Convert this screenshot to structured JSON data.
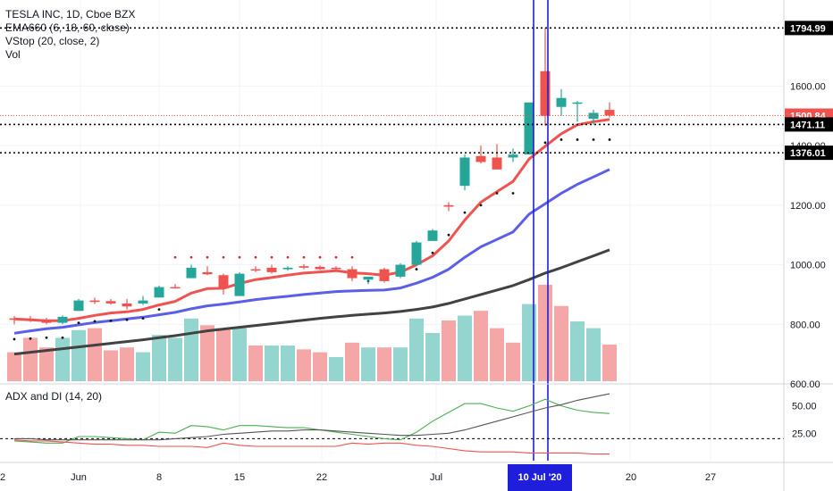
{
  "legend": {
    "title": "TESLA INC, 1D, Cboe BZX",
    "ema": "EMA660 (6, 18, 60, close)",
    "vstop": "VStop (20, close, 2)",
    "vol": "Vol"
  },
  "sub_legend": "ADX and DI (14, 20)",
  "colors": {
    "up": "#26a69a",
    "down": "#ef5350",
    "ema_fast": "#ef5350",
    "ema_mid": "#5b5fe6",
    "ema_slow": "#424242",
    "vline": "#1f1fdb",
    "dip": "#4caf50",
    "dim": "#ef5350",
    "adx": "#555555"
  },
  "chart_data": [
    {
      "type": "candlestick",
      "price_axis_ticks": [
        "1600.00",
        "1400.00",
        "1200.00",
        "1000.00",
        "800.00",
        "600.00"
      ],
      "ylim": [
        600,
        1880
      ],
      "x_axis_labels": [
        "2",
        "Jun",
        "8",
        "15",
        "22",
        "Jul",
        "20",
        "27"
      ],
      "highlighted_date": "10 Jul '20",
      "price_tags": [
        {
          "value": 1794.99,
          "label": "1794.99",
          "style": "level"
        },
        {
          "value": 1500.84,
          "label": "1500.84",
          "style": "last"
        },
        {
          "value": 1471.11,
          "label": "1471.11",
          "style": "level"
        },
        {
          "value": 1376.01,
          "label": "1376.01",
          "style": "level"
        }
      ],
      "candles": [
        {
          "o": 820,
          "h": 828,
          "l": 800,
          "c": 815
        },
        {
          "o": 818,
          "h": 828,
          "l": 808,
          "c": 812
        },
        {
          "o": 810,
          "h": 822,
          "l": 800,
          "c": 805
        },
        {
          "o": 805,
          "h": 830,
          "l": 800,
          "c": 825
        },
        {
          "o": 845,
          "h": 885,
          "l": 845,
          "c": 880
        },
        {
          "o": 880,
          "h": 890,
          "l": 868,
          "c": 875
        },
        {
          "o": 878,
          "h": 885,
          "l": 866,
          "c": 870
        },
        {
          "o": 870,
          "h": 885,
          "l": 850,
          "c": 860
        },
        {
          "o": 870,
          "h": 895,
          "l": 865,
          "c": 880
        },
        {
          "o": 890,
          "h": 930,
          "l": 890,
          "c": 925
        },
        {
          "o": 925,
          "h": 935,
          "l": 920,
          "c": 924
        },
        {
          "o": 955,
          "h": 1000,
          "l": 955,
          "c": 990
        },
        {
          "o": 975,
          "h": 995,
          "l": 965,
          "c": 968
        },
        {
          "o": 965,
          "h": 970,
          "l": 900,
          "c": 920
        },
        {
          "o": 895,
          "h": 975,
          "l": 895,
          "c": 970
        },
        {
          "o": 985,
          "h": 995,
          "l": 975,
          "c": 983
        },
        {
          "o": 990,
          "h": 1000,
          "l": 970,
          "c": 975
        },
        {
          "o": 985,
          "h": 995,
          "l": 980,
          "c": 990
        },
        {
          "o": 995,
          "h": 1002,
          "l": 985,
          "c": 990
        },
        {
          "o": 993,
          "h": 998,
          "l": 983,
          "c": 985
        },
        {
          "o": 990,
          "h": 995,
          "l": 984,
          "c": 988
        },
        {
          "o": 985,
          "h": 995,
          "l": 945,
          "c": 955
        },
        {
          "o": 950,
          "h": 960,
          "l": 935,
          "c": 960
        },
        {
          "o": 985,
          "h": 990,
          "l": 940,
          "c": 945
        },
        {
          "o": 960,
          "h": 1005,
          "l": 955,
          "c": 1000
        },
        {
          "o": 1000,
          "h": 1080,
          "l": 995,
          "c": 1075
        },
        {
          "o": 1080,
          "h": 1120,
          "l": 1080,
          "c": 1115
        },
        {
          "o": 1200,
          "h": 1210,
          "l": 1180,
          "c": 1195
        },
        {
          "o": 1265,
          "h": 1370,
          "l": 1250,
          "c": 1360
        },
        {
          "o": 1365,
          "h": 1400,
          "l": 1340,
          "c": 1345
        },
        {
          "o": 1360,
          "h": 1405,
          "l": 1320,
          "c": 1320
        },
        {
          "o": 1360,
          "h": 1390,
          "l": 1345,
          "c": 1370
        },
        {
          "o": 1370,
          "h": 1545,
          "l": 1370,
          "c": 1545
        },
        {
          "o": 1650,
          "h": 1794.99,
          "l": 1466,
          "c": 1500
        },
        {
          "o": 1530,
          "h": 1590,
          "l": 1500,
          "c": 1560
        },
        {
          "o": 1545,
          "h": 1550,
          "l": 1480,
          "c": 1545
        },
        {
          "o": 1490,
          "h": 1520,
          "l": 1470,
          "c": 1510
        },
        {
          "o": 1520,
          "h": 1545,
          "l": 1495,
          "c": 1500.84
        }
      ],
      "volume": [
        {
          "v": 0.3,
          "up": false
        },
        {
          "v": 0.45,
          "up": false
        },
        {
          "v": 0.35,
          "up": false
        },
        {
          "v": 0.45,
          "up": true
        },
        {
          "v": 0.53,
          "up": true
        },
        {
          "v": 0.55,
          "up": false
        },
        {
          "v": 0.32,
          "up": false
        },
        {
          "v": 0.35,
          "up": false
        },
        {
          "v": 0.3,
          "up": true
        },
        {
          "v": 0.48,
          "up": true
        },
        {
          "v": 0.45,
          "up": true
        },
        {
          "v": 0.65,
          "up": true
        },
        {
          "v": 0.58,
          "up": false
        },
        {
          "v": 0.55,
          "up": false
        },
        {
          "v": 0.55,
          "up": true
        },
        {
          "v": 0.37,
          "up": false
        },
        {
          "v": 0.37,
          "up": true
        },
        {
          "v": 0.37,
          "up": true
        },
        {
          "v": 0.33,
          "up": false
        },
        {
          "v": 0.3,
          "up": false
        },
        {
          "v": 0.25,
          "up": true
        },
        {
          "v": 0.4,
          "up": false
        },
        {
          "v": 0.35,
          "up": true
        },
        {
          "v": 0.35,
          "up": false
        },
        {
          "v": 0.35,
          "up": true
        },
        {
          "v": 0.65,
          "up": true
        },
        {
          "v": 0.5,
          "up": true
        },
        {
          "v": 0.63,
          "up": false
        },
        {
          "v": 0.68,
          "up": true
        },
        {
          "v": 0.73,
          "up": false
        },
        {
          "v": 0.55,
          "up": false
        },
        {
          "v": 0.4,
          "up": false
        },
        {
          "v": 0.8,
          "up": true
        },
        {
          "v": 1.0,
          "up": false
        },
        {
          "v": 0.78,
          "up": false
        },
        {
          "v": 0.62,
          "up": true
        },
        {
          "v": 0.55,
          "up": true
        },
        {
          "v": 0.38,
          "up": false
        }
      ],
      "ema_fast": [
        818,
        815,
        812,
        812,
        820,
        830,
        838,
        842,
        850,
        865,
        877,
        905,
        920,
        921,
        937,
        950,
        957,
        965,
        972,
        976,
        980,
        973,
        970,
        965,
        975,
        1000,
        1030,
        1080,
        1150,
        1210,
        1245,
        1280,
        1355,
        1398,
        1440,
        1470,
        1480,
        1488
      ],
      "ema_mid": [
        770,
        778,
        785,
        790,
        798,
        806,
        812,
        818,
        824,
        832,
        840,
        852,
        862,
        868,
        875,
        883,
        889,
        894,
        900,
        905,
        910,
        912,
        914,
        915,
        922,
        938,
        958,
        985,
        1025,
        1060,
        1085,
        1110,
        1170,
        1205,
        1240,
        1270,
        1295,
        1320
      ],
      "ema_slow": [
        700,
        706,
        712,
        718,
        724,
        730,
        736,
        742,
        748,
        755,
        762,
        770,
        778,
        784,
        790,
        796,
        802,
        808,
        814,
        820,
        825,
        830,
        834,
        838,
        843,
        850,
        858,
        870,
        885,
        900,
        915,
        930,
        950,
        972,
        990,
        1010,
        1030,
        1050
      ],
      "vstop": [
        {
          "i": 1,
          "v": 750
        },
        {
          "i": 2,
          "v": 752
        },
        {
          "i": 3,
          "v": 755
        },
        {
          "i": 4,
          "v": 755
        },
        {
          "i": 5,
          "v": 805
        },
        {
          "i": 6,
          "v": 810
        },
        {
          "i": 7,
          "v": 812
        },
        {
          "i": 8,
          "v": 815
        },
        {
          "i": 9,
          "v": 820
        },
        {
          "i": 10,
          "v": 850
        },
        {
          "i": 11,
          "v": 1025
        },
        {
          "i": 12,
          "v": 1025
        },
        {
          "i": 13,
          "v": 1025
        },
        {
          "i": 14,
          "v": 1025
        },
        {
          "i": 15,
          "v": 1025
        },
        {
          "i": 16,
          "v": 1025
        },
        {
          "i": 17,
          "v": 1025
        },
        {
          "i": 18,
          "v": 1025
        },
        {
          "i": 19,
          "v": 1025
        },
        {
          "i": 20,
          "v": 1025
        },
        {
          "i": 21,
          "v": 1025
        },
        {
          "i": 22,
          "v": 1025
        },
        {
          "i": 23,
          "v": 945
        },
        {
          "i": 24,
          "v": 955
        },
        {
          "i": 25,
          "v": 965
        },
        {
          "i": 26,
          "v": 985
        },
        {
          "i": 27,
          "v": 1040
        },
        {
          "i": 28,
          "v": 1100
        },
        {
          "i": 29,
          "v": 1175
        },
        {
          "i": 30,
          "v": 1200
        },
        {
          "i": 31,
          "v": 1240
        },
        {
          "i": 32,
          "v": 1240
        },
        {
          "i": 33,
          "v": 1385
        },
        {
          "i": 34,
          "v": 1410
        },
        {
          "i": 35,
          "v": 1420
        },
        {
          "i": 36,
          "v": 1420
        },
        {
          "i": 37,
          "v": 1420
        },
        {
          "i": 38,
          "v": 1420
        }
      ],
      "adx_ticks": [
        "50.00",
        "25.00"
      ],
      "adx_ylim": [
        0,
        70
      ],
      "adx_threshold": 20,
      "dip": [
        18,
        17,
        16,
        16,
        22,
        22,
        21,
        20,
        19,
        26,
        25,
        32,
        31,
        28,
        32,
        32,
        31,
        30,
        30,
        28,
        26,
        24,
        22,
        20,
        19,
        26,
        36,
        44,
        52,
        52,
        48,
        45,
        50,
        56,
        50,
        46,
        44,
        43
      ],
      "dim": [
        19,
        18,
        18,
        17,
        16,
        15,
        15,
        14,
        14,
        13,
        13,
        13,
        12,
        16,
        14,
        13,
        13,
        13,
        13,
        13,
        13,
        16,
        15,
        16,
        16,
        14,
        13,
        11,
        9,
        8,
        8,
        8,
        7,
        7,
        7,
        7,
        6,
        6
      ],
      "adx": [
        20,
        20,
        19,
        19,
        19,
        19,
        19,
        19,
        19,
        19,
        20,
        21,
        22,
        24,
        25,
        26,
        27,
        27,
        28,
        28,
        27,
        26,
        25,
        24,
        23,
        23,
        24,
        25,
        28,
        32,
        36,
        40,
        44,
        48,
        51,
        55,
        58,
        61
      ]
    }
  ]
}
